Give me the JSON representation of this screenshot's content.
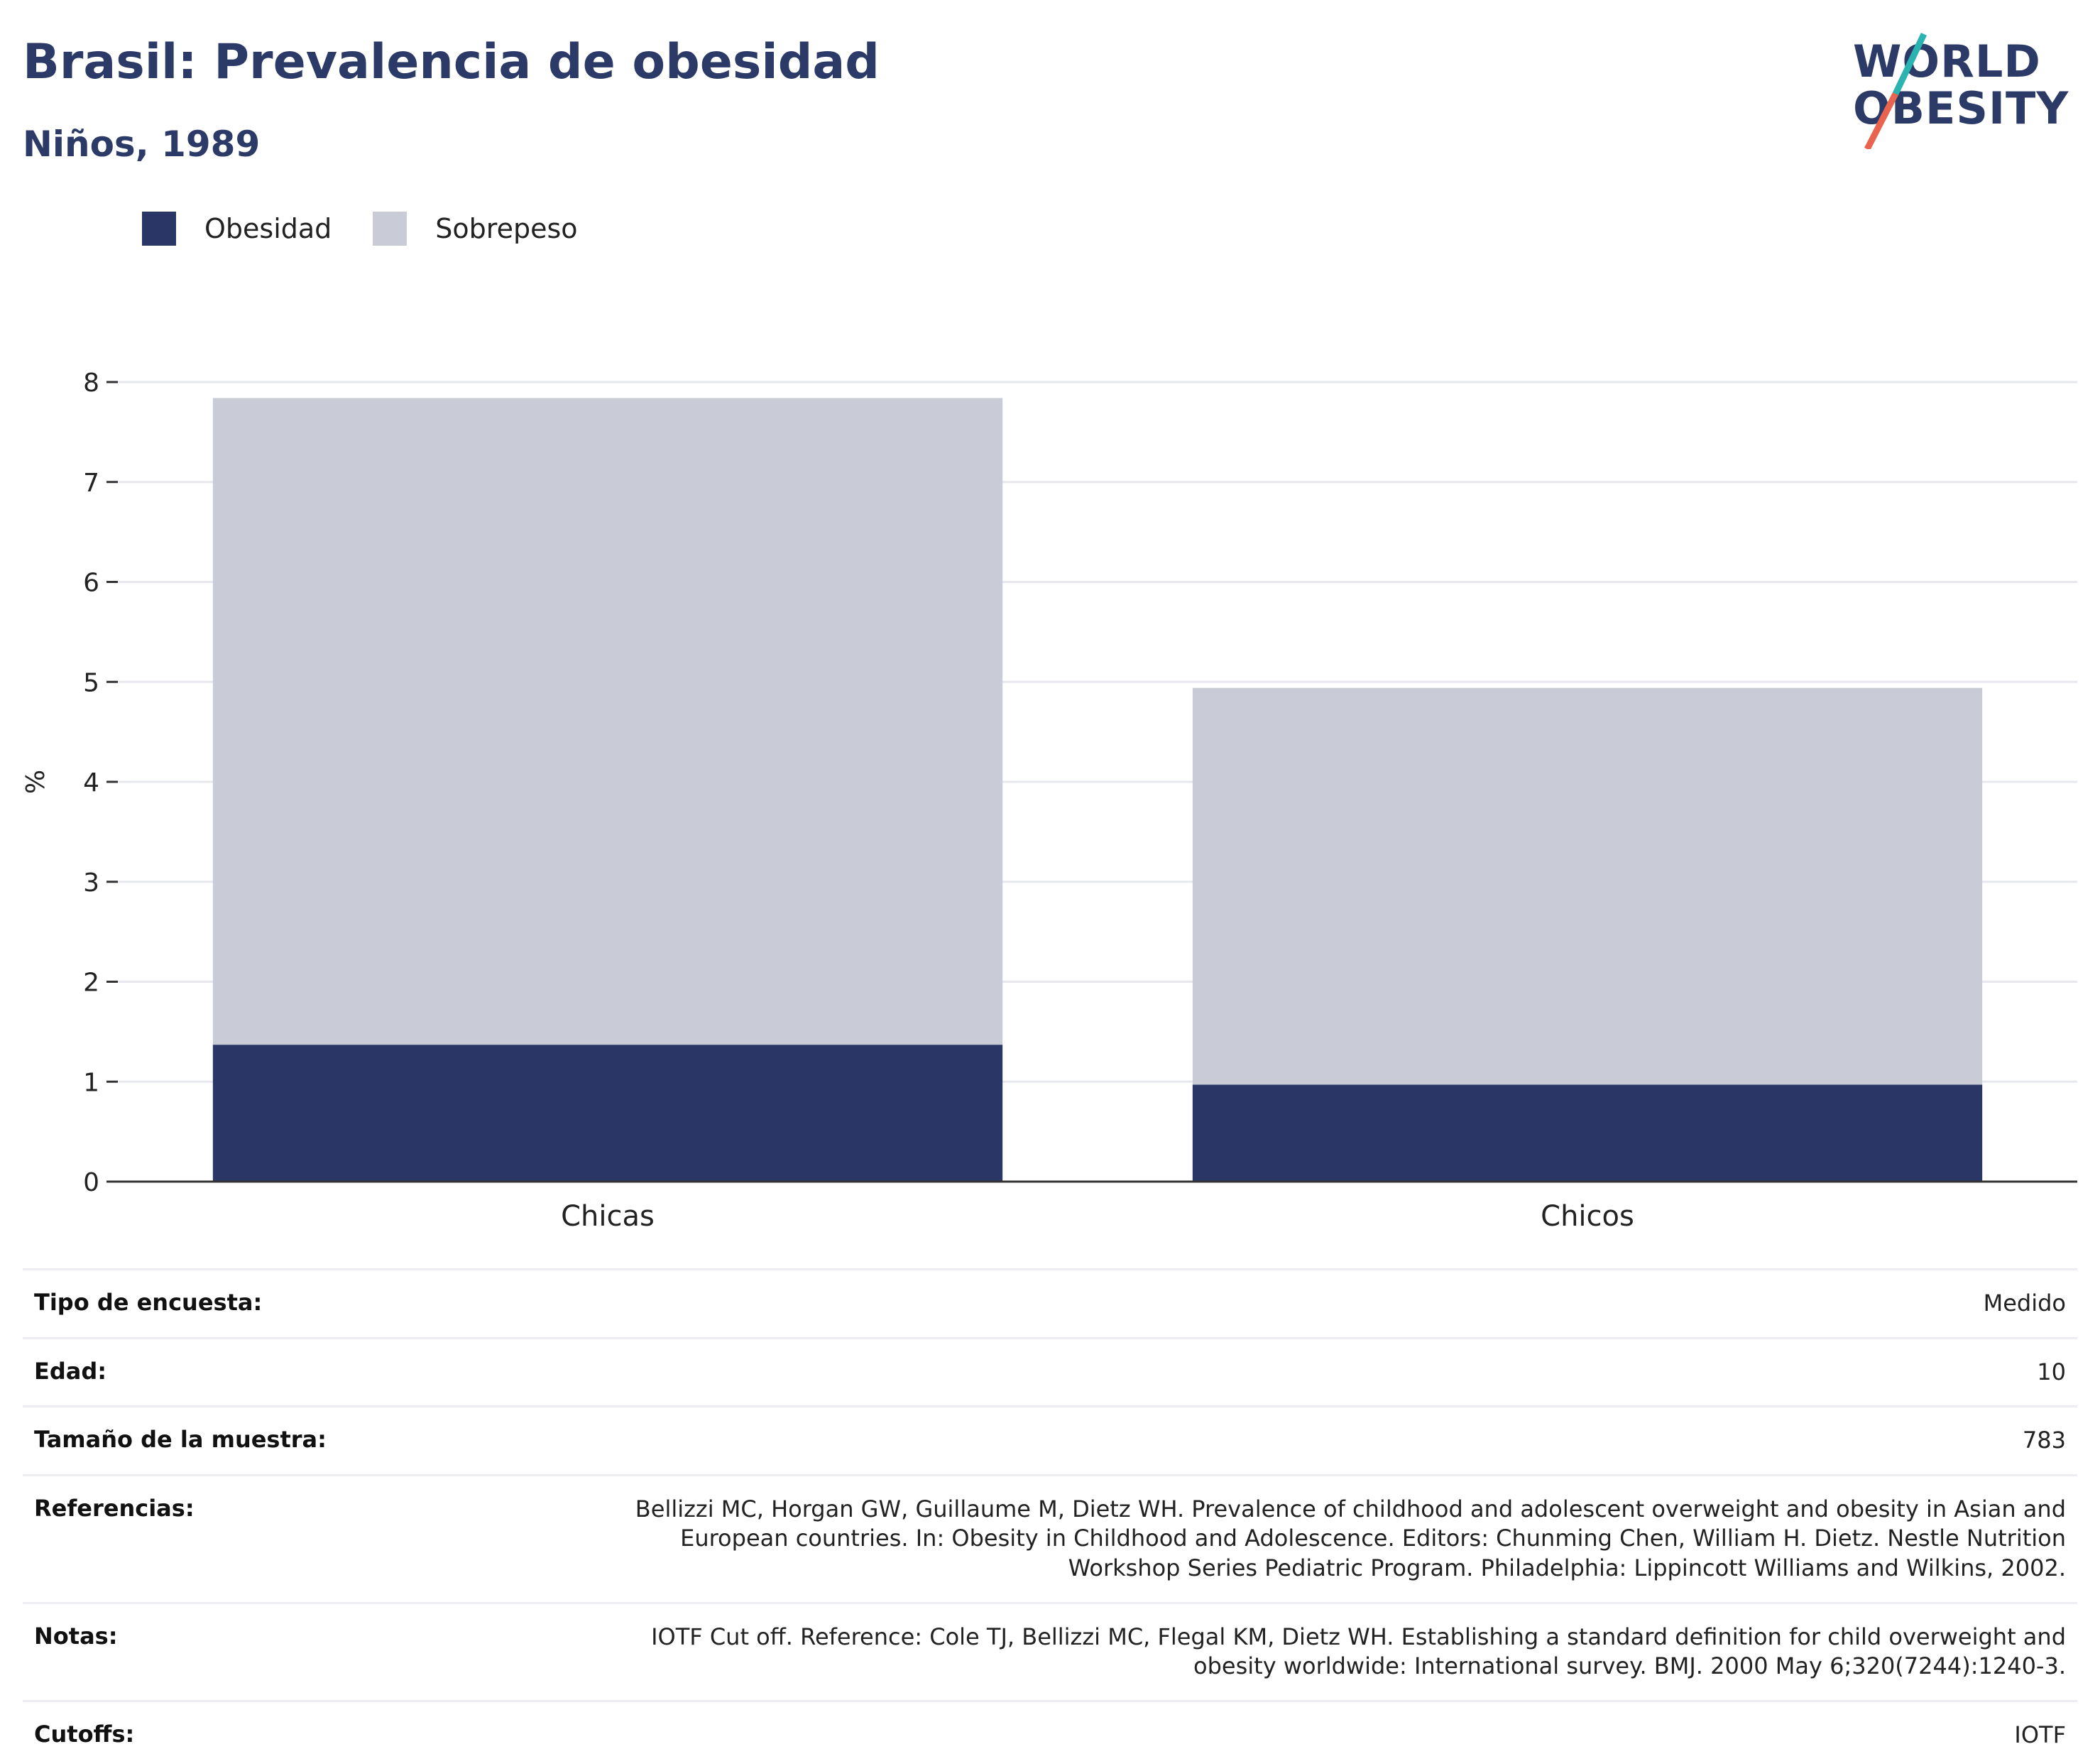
{
  "header": {
    "title": "Brasil: Prevalencia de obesidad",
    "subtitle": "Niños, 1989"
  },
  "logo": {
    "line1": "WORLD",
    "line2": "OBESITY",
    "accent_colors": [
      "#2ab3b1",
      "#e8644f"
    ]
  },
  "legend": [
    {
      "label": "Obesidad",
      "color": "#2a3665"
    },
    {
      "label": "Sobrepeso",
      "color": "#c9ccd7"
    }
  ],
  "chart_data": {
    "type": "bar",
    "stacked": true,
    "categories": [
      "Chicas",
      "Chicos"
    ],
    "series": [
      {
        "name": "Obesidad",
        "color": "#2a3665",
        "values": [
          1.37,
          0.97
        ]
      },
      {
        "name": "Sobrepeso",
        "color": "#c9ccd7",
        "values": [
          6.47,
          3.97
        ]
      }
    ],
    "ylabel": "%",
    "ylim": [
      0,
      8
    ],
    "yticks": [
      0,
      1,
      2,
      3,
      4,
      5,
      6,
      7,
      8
    ],
    "grid": true
  },
  "info": [
    {
      "key": "Tipo de encuesta:",
      "value": "Medido"
    },
    {
      "key": "Edad:",
      "value": "10"
    },
    {
      "key": "Tamaño de la muestra:",
      "value": "783"
    },
    {
      "key": "Referencias:",
      "value": "Bellizzi MC, Horgan GW, Guillaume M, Dietz WH. Prevalence of childhood and adolescent overweight and obesity in Asian and European countries. In: Obesity in Childhood and Adolescence. Editors: Chunming Chen, William H. Dietz. Nestle Nutrition Workshop Series Pediatric Program. Philadelphia: Lippincott Williams and Wilkins, 2002."
    },
    {
      "key": "Notas:",
      "value": "IOTF Cut off. Reference: Cole TJ, Bellizzi MC, Flegal KM, Dietz WH. Establishing a standard definition for child overweight and obesity worldwide: International survey. BMJ. 2000 May 6;320(7244):1240-3."
    },
    {
      "key": "Cutoffs:",
      "value": "IOTF"
    }
  ]
}
